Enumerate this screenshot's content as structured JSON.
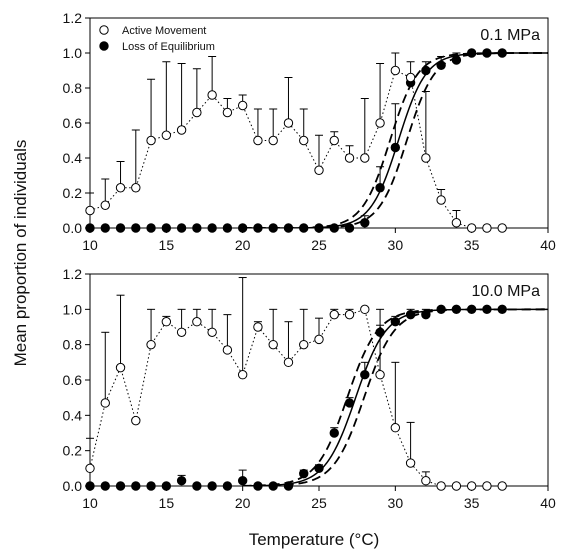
{
  "figure": {
    "xlabel": "Temperature (°C)",
    "ylabel": "Mean proportion of individuals"
  },
  "legend": {
    "position": "top-left of upper panel",
    "items": [
      {
        "label": "Active Movement",
        "marker": "open-circle"
      },
      {
        "label": "Loss of Equilibrium",
        "marker": "filled-circle"
      }
    ]
  },
  "colors": {
    "marker_stroke": "#000000",
    "open_fill": "#ffffff",
    "filled_fill": "#000000"
  },
  "chart_data": [
    {
      "type": "scatter",
      "panel_label": "0.1 MPa",
      "xlim": [
        10,
        40
      ],
      "ylim": [
        0,
        1.2
      ],
      "xticks": [
        10,
        15,
        20,
        25,
        30,
        35,
        40
      ],
      "yticks": [
        "0.0",
        "0.2",
        "0.4",
        "0.6",
        "0.8",
        "1.0",
        "1.2"
      ],
      "grid": false,
      "series": [
        {
          "name": "Active Movement",
          "style": "open circles joined by dotted line, upward error bars",
          "x": [
            10,
            11,
            12,
            13,
            14,
            15,
            16,
            17,
            18,
            19,
            20,
            21,
            22,
            23,
            24,
            25,
            26,
            27,
            28,
            29,
            30,
            31,
            32,
            33,
            34,
            35,
            36,
            37
          ],
          "y": [
            0.1,
            0.13,
            0.23,
            0.23,
            0.5,
            0.53,
            0.56,
            0.66,
            0.76,
            0.66,
            0.7,
            0.5,
            0.5,
            0.6,
            0.5,
            0.33,
            0.5,
            0.4,
            0.4,
            0.6,
            0.9,
            0.86,
            0.4,
            0.16,
            0.03,
            0.0,
            0.0,
            0.0
          ],
          "err": [
            0.1,
            0.15,
            0.15,
            0.33,
            0.35,
            0.42,
            0.38,
            0.25,
            0.22,
            0.08,
            0.06,
            0.18,
            0.18,
            0.26,
            0.18,
            0.2,
            0.05,
            0.07,
            0.34,
            0.34,
            0.1,
            0.0,
            0.38,
            0.06,
            0.07,
            0.0,
            0.0,
            0.0
          ]
        },
        {
          "name": "Loss of Equilibrium",
          "style": "filled circles with upward error bars",
          "x": [
            10,
            11,
            12,
            13,
            14,
            15,
            16,
            17,
            18,
            19,
            20,
            21,
            22,
            23,
            24,
            25,
            26,
            27,
            28,
            29,
            30,
            31,
            32,
            33,
            34,
            35,
            36,
            37
          ],
          "y": [
            0.0,
            0.0,
            0.0,
            0.0,
            0.0,
            0.0,
            0.0,
            0.0,
            0.0,
            0.0,
            0.0,
            0.0,
            0.0,
            0.0,
            0.0,
            0.0,
            0.0,
            0.0,
            0.03,
            0.23,
            0.46,
            0.83,
            0.9,
            0.93,
            0.96,
            1.0,
            1.0,
            1.0
          ],
          "err": [
            0.0,
            0.0,
            0.0,
            0.0,
            0.0,
            0.0,
            0.0,
            0.0,
            0.0,
            0.0,
            0.0,
            0.0,
            0.0,
            0.0,
            0.0,
            0.0,
            0.0,
            0.0,
            0.04,
            0.12,
            0.25,
            0.12,
            0.05,
            0.05,
            0.04,
            0.0,
            0.0,
            0.0
          ]
        },
        {
          "name": "Logistic fit",
          "style": "solid curve with dashed 95% confidence bands",
          "midpoint": 30.2,
          "slope": 1.1,
          "band_shift": 0.55
        }
      ]
    },
    {
      "type": "scatter",
      "panel_label": "10.0 MPa",
      "xlim": [
        10,
        40
      ],
      "ylim": [
        0,
        1.2
      ],
      "xticks": [
        10,
        15,
        20,
        25,
        30,
        35,
        40
      ],
      "yticks": [
        "0.0",
        "0.2",
        "0.4",
        "0.6",
        "0.8",
        "1.0",
        "1.2"
      ],
      "grid": false,
      "series": [
        {
          "name": "Active Movement",
          "style": "open circles joined by dotted line, upward error bars",
          "x": [
            10,
            11,
            12,
            13,
            14,
            15,
            16,
            17,
            18,
            19,
            20,
            21,
            22,
            23,
            24,
            25,
            26,
            27,
            28,
            29,
            30,
            31,
            32,
            33,
            34,
            35,
            36,
            37
          ],
          "y": [
            0.1,
            0.47,
            0.67,
            0.37,
            0.8,
            0.93,
            0.87,
            0.93,
            0.87,
            0.77,
            0.63,
            0.9,
            0.8,
            0.7,
            0.8,
            0.83,
            0.97,
            0.97,
            1.0,
            0.63,
            0.33,
            0.13,
            0.03,
            0.0,
            0.0,
            0.0,
            0.0,
            0.0
          ],
          "err": [
            0.17,
            0.4,
            0.41,
            0.0,
            0.2,
            0.03,
            0.13,
            0.07,
            0.13,
            0.2,
            0.55,
            0.03,
            0.2,
            0.23,
            0.2,
            0.12,
            0.03,
            0.03,
            0.0,
            0.28,
            0.37,
            0.23,
            0.05,
            0.0,
            0.0,
            0.0,
            0.0,
            0.0
          ]
        },
        {
          "name": "Loss of Equilibrium",
          "style": "filled circles with upward error bars",
          "x": [
            10,
            11,
            12,
            13,
            14,
            15,
            16,
            17,
            18,
            19,
            20,
            21,
            22,
            23,
            24,
            25,
            26,
            27,
            28,
            29,
            30,
            31,
            32,
            33,
            34,
            35,
            36,
            37
          ],
          "y": [
            0.0,
            0.0,
            0.0,
            0.0,
            0.0,
            0.0,
            0.03,
            0.0,
            0.0,
            0.0,
            0.03,
            0.0,
            0.0,
            0.0,
            0.07,
            0.1,
            0.3,
            0.47,
            0.63,
            0.87,
            0.93,
            0.97,
            0.97,
            1.0,
            1.0,
            1.0,
            1.0,
            1.0
          ],
          "err": [
            0.0,
            0.0,
            0.0,
            0.0,
            0.0,
            0.0,
            0.03,
            0.0,
            0.0,
            0.0,
            0.06,
            0.0,
            0.0,
            0.0,
            0.02,
            0.02,
            0.03,
            0.03,
            0.07,
            0.13,
            0.03,
            0.03,
            0.03,
            0.0,
            0.0,
            0.0,
            0.0,
            0.0
          ]
        },
        {
          "name": "Logistic fit",
          "style": "solid curve with dashed 95% confidence bands",
          "midpoint": 27.4,
          "slope": 1.0,
          "band_shift": 0.55
        }
      ]
    }
  ]
}
